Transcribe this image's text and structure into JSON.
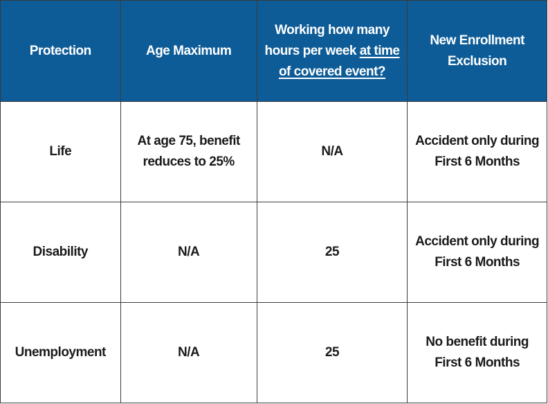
{
  "header": {
    "protection": "Protection",
    "age_maximum": "Age Maximum",
    "hours_line1": "Working how many",
    "hours_line2_plain": "hours per week ",
    "hours_line2_underlined": "at time",
    "hours_line3_underlined": "of covered event?",
    "exclusion_line1": "New Enrollment",
    "exclusion_line2": "Exclusion"
  },
  "rows": [
    {
      "protection": "Life",
      "age_line1": "At age 75, benefit",
      "age_line2": "reduces to 25%",
      "hours": "N/A",
      "exclusion_line1": "Accident only during",
      "exclusion_line2": "First 6 Months"
    },
    {
      "protection": "Disability",
      "age_line1": "N/A",
      "age_line2": "",
      "hours": "25",
      "exclusion_line1": "Accident only during",
      "exclusion_line2": "First 6 Months"
    },
    {
      "protection": "Unemployment",
      "age_line1": "N/A",
      "age_line2": "",
      "hours": "25",
      "exclusion_line1": "No benefit during",
      "exclusion_line2": "First 6 Months"
    }
  ],
  "colors": {
    "header_bg": "#0e5c97",
    "header_text": "#ffffff",
    "border": "#3a3a3a",
    "body_text": "#1a1a1a"
  }
}
